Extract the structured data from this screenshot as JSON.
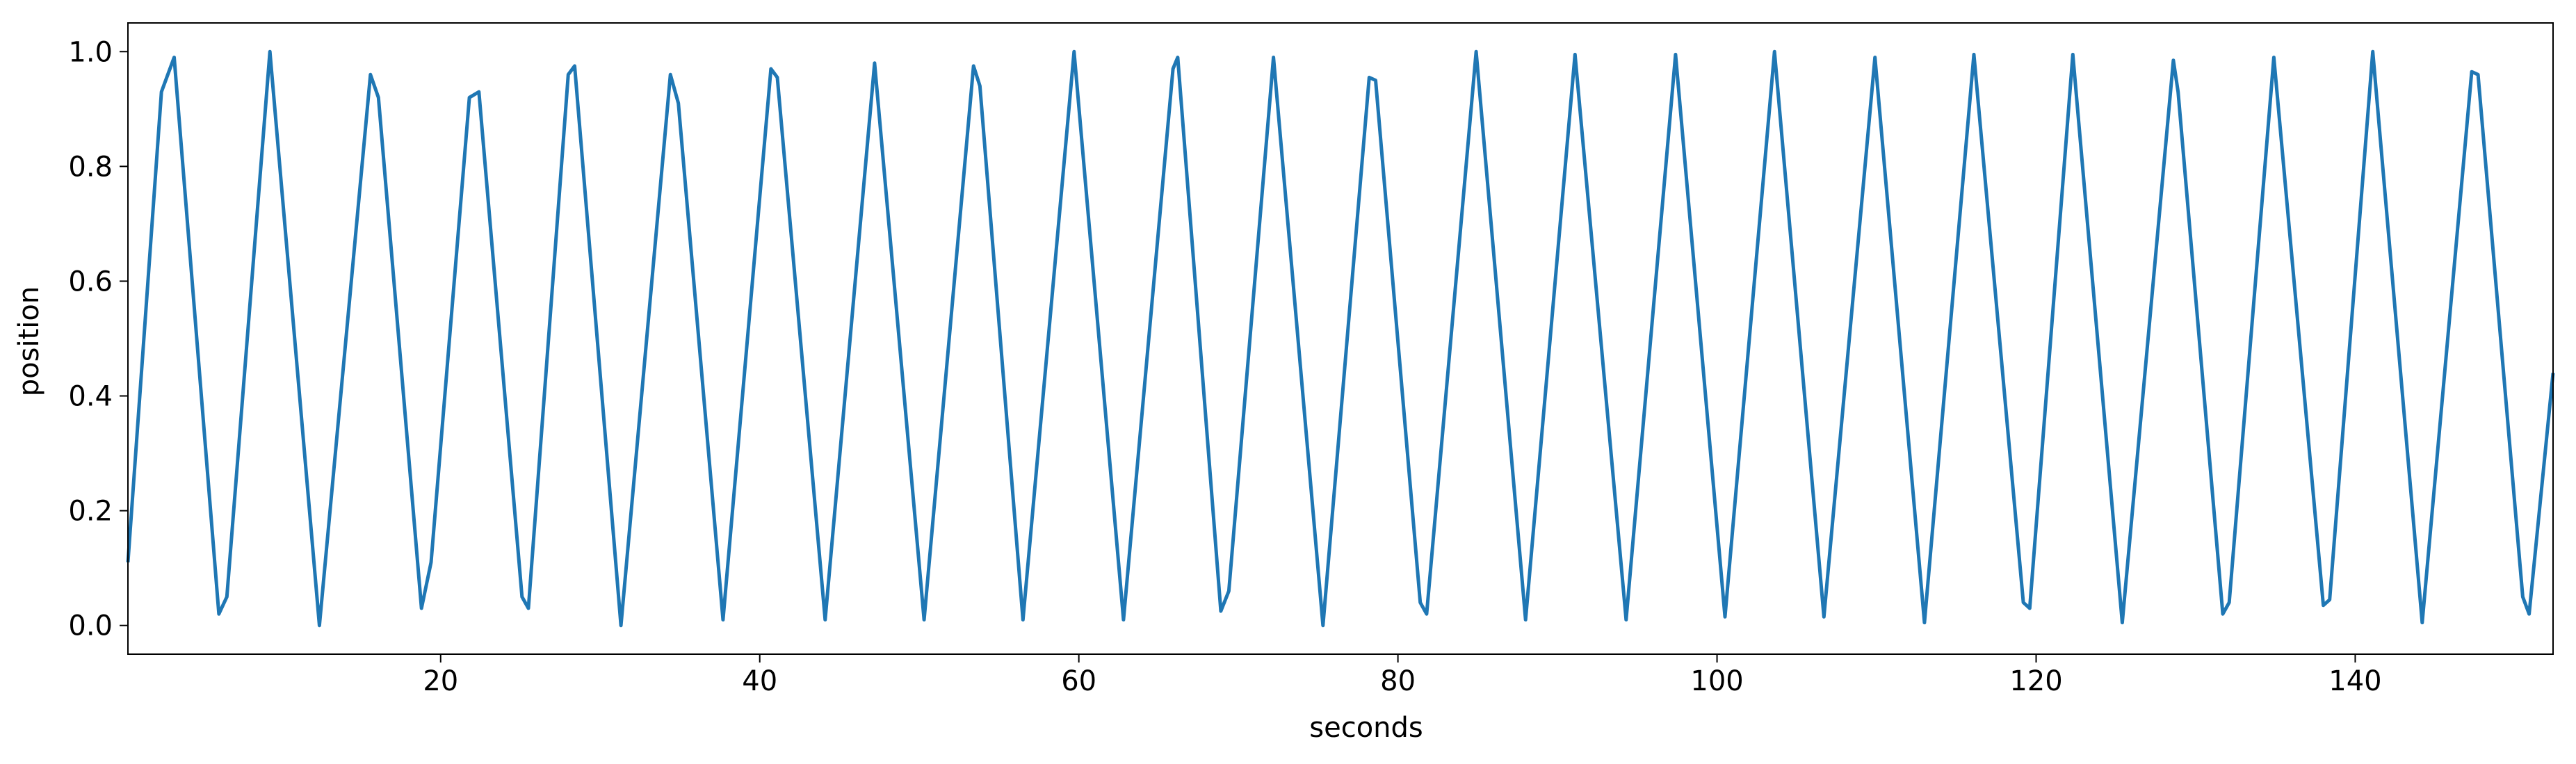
{
  "chart_data": {
    "type": "line",
    "title": "",
    "xlabel": "seconds",
    "ylabel": "position",
    "xlim": [
      0.4,
      152.4
    ],
    "ylim": [
      -0.05,
      1.05
    ],
    "xticks": [
      20,
      40,
      60,
      80,
      100,
      120,
      140
    ],
    "yticks": [
      0.0,
      0.2,
      0.4,
      0.6,
      0.8,
      1.0
    ],
    "grid": false,
    "legend": "none",
    "line_color": "#1f77b4",
    "series": [
      {
        "x": [
          0.4,
          2.5,
          3.3,
          6.1,
          6.6,
          9.3,
          12.4,
          15.6,
          16.1,
          18.8,
          19.4,
          21.8,
          22.4,
          25.1,
          25.5,
          28.0,
          28.4,
          31.3,
          34.4,
          34.9,
          37.7,
          40.7,
          41.1,
          44.1,
          47.2,
          50.3,
          53.4,
          53.8,
          56.5,
          59.7,
          62.8,
          65.9,
          66.2,
          68.9,
          69.4,
          72.2,
          75.3,
          78.2,
          78.6,
          81.4,
          81.8,
          84.9,
          88.0,
          91.1,
          94.3,
          97.4,
          100.5,
          103.6,
          106.7,
          109.9,
          113.0,
          116.1,
          119.2,
          119.6,
          122.3,
          125.4,
          128.6,
          128.9,
          131.7,
          132.1,
          134.9,
          138.0,
          138.4,
          141.1,
          144.2,
          147.3,
          147.7,
          150.5,
          150.9,
          152.4
        ],
        "y": [
          0.11,
          0.93,
          0.99,
          0.02,
          0.05,
          1.0,
          0.0,
          0.96,
          0.92,
          0.03,
          0.11,
          0.92,
          0.93,
          0.05,
          0.03,
          0.96,
          0.975,
          0.0,
          0.96,
          0.91,
          0.01,
          0.97,
          0.955,
          0.01,
          0.98,
          0.01,
          0.975,
          0.94,
          0.01,
          1.0,
          0.01,
          0.97,
          0.99,
          0.025,
          0.06,
          0.99,
          0.0,
          0.955,
          0.95,
          0.04,
          0.02,
          1.0,
          0.01,
          0.995,
          0.01,
          0.995,
          0.015,
          1.0,
          0.015,
          0.99,
          0.005,
          0.995,
          0.04,
          0.03,
          0.995,
          0.005,
          0.985,
          0.93,
          0.02,
          0.04,
          0.99,
          0.035,
          0.045,
          1.0,
          0.005,
          0.965,
          0.96,
          0.05,
          0.02,
          0.44
        ]
      }
    ]
  }
}
